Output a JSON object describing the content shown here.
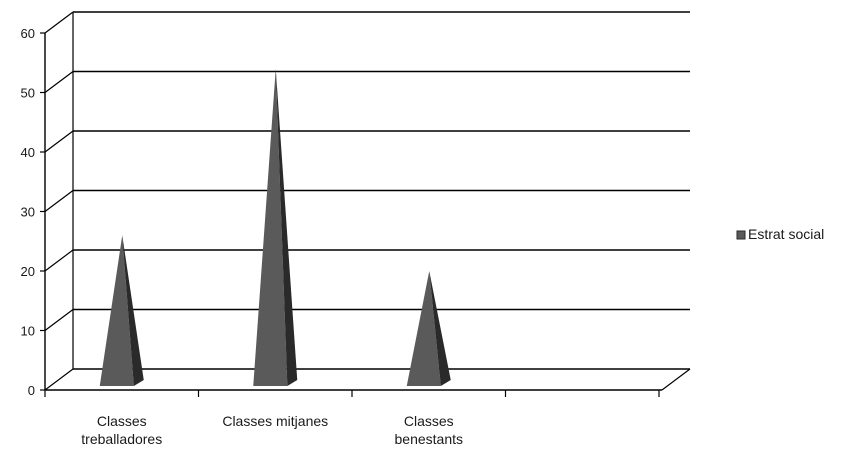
{
  "chart_data": {
    "type": "bar",
    "style": "3d-pyramid",
    "categories": [
      [
        "Classes",
        "treballadores"
      ],
      [
        "Classes mitjanes"
      ],
      [
        "Classes",
        "benestants"
      ],
      [
        ""
      ]
    ],
    "series": [
      {
        "name": "Estrat social",
        "values": [
          26,
          54,
          20,
          null
        ]
      }
    ],
    "ylim": [
      0,
      60
    ],
    "yticks": [
      0,
      10,
      20,
      30,
      40,
      50,
      60
    ],
    "grid": true,
    "legend_position": "right",
    "colors": {
      "pyramid_face": "#5a5a5a",
      "pyramid_shadow": "#2a2a2a",
      "grid": "#000000",
      "axis": "#000000"
    }
  }
}
